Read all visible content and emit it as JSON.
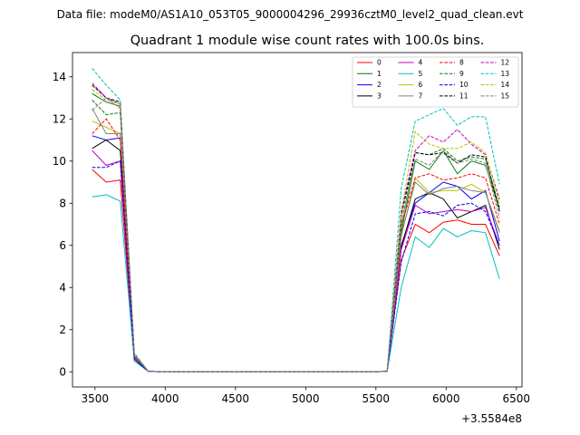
{
  "suptitle": "Data file: modeM0/AS1A10_053T05_9000004296_29936cztM0_level2_quad_clean.evt",
  "chart_data": {
    "type": "line",
    "title": "Quadrant 1 module wise count rates with 100.0s bins.",
    "xlabel": "",
    "ylabel": "",
    "x_offset_label": "+3.5584e8",
    "xlim": [
      3340,
      6540
    ],
    "ylim": [
      -0.72,
      15.15
    ],
    "xticks": [
      3500,
      4000,
      4500,
      5000,
      5500,
      6000,
      6500
    ],
    "yticks": [
      0,
      2,
      4,
      6,
      8,
      10,
      12,
      14
    ],
    "x": [
      3480,
      3580,
      3680,
      3780,
      3880,
      3980,
      4080,
      4180,
      4280,
      4380,
      4480,
      4580,
      4680,
      4780,
      4880,
      4980,
      5080,
      5180,
      5280,
      5380,
      5480,
      5580,
      5680,
      5780,
      5880,
      5980,
      6080,
      6180,
      6280,
      6380
    ],
    "legend_position": "upper right",
    "legend_ncol": 4,
    "series": [
      {
        "name": "0",
        "color": "#ff0000",
        "dash": false,
        "values": [
          9.6,
          9.0,
          9.1,
          0.6,
          0.02,
          0,
          0,
          0,
          0,
          0,
          0,
          0,
          0,
          0,
          0,
          0,
          0,
          0,
          0,
          0,
          0,
          0.02,
          5.3,
          7.0,
          6.6,
          7.1,
          7.2,
          7.0,
          7.0,
          5.5
        ]
      },
      {
        "name": "1",
        "color": "#008000",
        "dash": false,
        "values": [
          13.2,
          12.8,
          12.6,
          0.8,
          0.02,
          0,
          0,
          0,
          0,
          0,
          0,
          0,
          0,
          0,
          0,
          0,
          0,
          0,
          0,
          0,
          0,
          0.02,
          6.6,
          10.0,
          9.6,
          10.5,
          9.4,
          10.0,
          9.8,
          7.7
        ]
      },
      {
        "name": "2",
        "color": "#0000ff",
        "dash": false,
        "values": [
          11.2,
          11.0,
          11.1,
          0.7,
          0.02,
          0,
          0,
          0,
          0,
          0,
          0,
          0,
          0,
          0,
          0,
          0,
          0,
          0,
          0,
          0,
          0,
          0.02,
          6.0,
          8.0,
          8.5,
          9.0,
          8.8,
          8.2,
          8.6,
          6.2
        ]
      },
      {
        "name": "3",
        "color": "#000000",
        "dash": false,
        "values": [
          10.6,
          11.0,
          10.5,
          0.6,
          0.02,
          0,
          0,
          0,
          0,
          0,
          0,
          0,
          0,
          0,
          0,
          0,
          0,
          0,
          0,
          0,
          0,
          0.02,
          5.9,
          8.2,
          8.5,
          8.2,
          7.3,
          7.6,
          7.9,
          5.8
        ]
      },
      {
        "name": "4",
        "color": "#bf00bf",
        "dash": false,
        "values": [
          10.5,
          9.8,
          10.0,
          0.7,
          0.02,
          0,
          0,
          0,
          0,
          0,
          0,
          0,
          0,
          0,
          0,
          0,
          0,
          0,
          0,
          0,
          0,
          0.02,
          5.8,
          7.9,
          7.5,
          7.6,
          7.7,
          7.6,
          7.8,
          6.0
        ]
      },
      {
        "name": "5",
        "color": "#00bfbf",
        "dash": false,
        "values": [
          8.3,
          8.4,
          8.1,
          0.5,
          0.02,
          0,
          0,
          0,
          0,
          0,
          0,
          0,
          0,
          0,
          0,
          0,
          0,
          0,
          0,
          0,
          0,
          0.02,
          4.0,
          6.4,
          5.9,
          6.8,
          6.4,
          6.7,
          6.6,
          4.4
        ]
      },
      {
        "name": "6",
        "color": "#bfbf00",
        "dash": false,
        "values": [
          11.9,
          11.6,
          11.3,
          0.7,
          0.02,
          0,
          0,
          0,
          0,
          0,
          0,
          0,
          0,
          0,
          0,
          0,
          0,
          0,
          0,
          0,
          0,
          0.02,
          6.4,
          9.2,
          8.5,
          8.6,
          8.6,
          8.9,
          8.5,
          6.7
        ]
      },
      {
        "name": "7",
        "color": "#808080",
        "dash": false,
        "values": [
          12.5,
          11.3,
          11.3,
          0.7,
          0.02,
          0,
          0,
          0,
          0,
          0,
          0,
          0,
          0,
          0,
          0,
          0,
          0,
          0,
          0,
          0,
          0,
          0.02,
          6.5,
          9.0,
          8.4,
          8.7,
          8.8,
          8.6,
          8.5,
          6.6
        ]
      },
      {
        "name": "8",
        "color": "#ff0000",
        "dash": true,
        "values": [
          11.3,
          12.0,
          11.0,
          0.7,
          0.02,
          0,
          0,
          0,
          0,
          0,
          0,
          0,
          0,
          0,
          0,
          0,
          0,
          0,
          0,
          0,
          0,
          0.02,
          6.9,
          9.2,
          9.4,
          9.1,
          9.2,
          9.4,
          9.2,
          7.0
        ]
      },
      {
        "name": "9",
        "color": "#008000",
        "dash": true,
        "values": [
          12.9,
          12.2,
          12.3,
          0.8,
          0.02,
          0,
          0,
          0,
          0,
          0,
          0,
          0,
          0,
          0,
          0,
          0,
          0,
          0,
          0,
          0,
          0,
          0.02,
          6.9,
          10.4,
          10.3,
          10.6,
          10.0,
          10.2,
          10.1,
          7.8
        ]
      },
      {
        "name": "10",
        "color": "#0000ff",
        "dash": true,
        "values": [
          9.7,
          9.7,
          10.0,
          0.6,
          0.02,
          0,
          0,
          0,
          0,
          0,
          0,
          0,
          0,
          0,
          0,
          0,
          0,
          0,
          0,
          0,
          0,
          0.02,
          5.2,
          7.5,
          7.6,
          7.4,
          7.9,
          8.0,
          7.6,
          6.0
        ]
      },
      {
        "name": "11",
        "color": "#000000",
        "dash": true,
        "values": [
          13.6,
          13.0,
          12.8,
          0.8,
          0.02,
          0,
          0,
          0,
          0,
          0,
          0,
          0,
          0,
          0,
          0,
          0,
          0,
          0,
          0,
          0,
          0,
          0.02,
          7.4,
          10.4,
          10.3,
          10.4,
          9.9,
          10.3,
          10.2,
          7.6
        ]
      },
      {
        "name": "12",
        "color": "#bf00bf",
        "dash": true,
        "values": [
          13.7,
          13.0,
          12.7,
          0.8,
          0.02,
          0,
          0,
          0,
          0,
          0,
          0,
          0,
          0,
          0,
          0,
          0,
          0,
          0,
          0,
          0,
          0,
          0.02,
          7.6,
          10.5,
          11.2,
          10.9,
          11.5,
          10.8,
          10.3,
          8.2
        ]
      },
      {
        "name": "13",
        "color": "#00bfbf",
        "dash": true,
        "values": [
          14.4,
          13.6,
          12.9,
          0.9,
          0.02,
          0,
          0,
          0,
          0,
          0,
          0,
          0,
          0,
          0,
          0,
          0,
          0,
          0,
          0,
          0,
          0,
          0.02,
          8.7,
          11.9,
          12.2,
          12.5,
          11.7,
          12.1,
          12.1,
          8.9
        ]
      },
      {
        "name": "14",
        "color": "#bfbf00",
        "dash": true,
        "values": [
          13.4,
          12.9,
          12.7,
          0.8,
          0.02,
          0,
          0,
          0,
          0,
          0,
          0,
          0,
          0,
          0,
          0,
          0,
          0,
          0,
          0,
          0,
          0,
          0.02,
          7.6,
          11.4,
          10.8,
          10.6,
          10.6,
          10.9,
          10.4,
          8.0
        ]
      },
      {
        "name": "15",
        "color": "#808080",
        "dash": true,
        "values": [
          12.4,
          13.0,
          12.5,
          0.8,
          0.02,
          0,
          0,
          0,
          0,
          0,
          0,
          0,
          0,
          0,
          0,
          0,
          0,
          0,
          0,
          0,
          0,
          0.02,
          7.0,
          10.1,
          9.8,
          10.5,
          9.9,
          10.1,
          9.9,
          7.3
        ]
      }
    ]
  }
}
